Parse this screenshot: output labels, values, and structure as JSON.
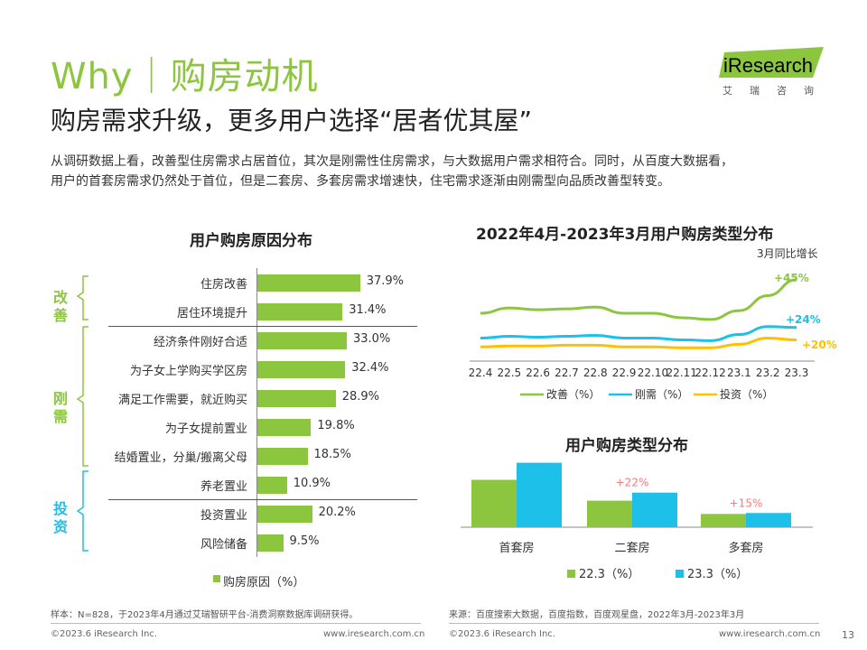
{
  "header": {
    "title": "Why｜购房动机",
    "subtitle": "购房需求升级，更多用户选择“居者优其屋”",
    "paragraph_line1": "从调研数据上看，改善型住房需求占居首位，其次是刚需性住房需求，与大数据用户需求相符合。同时，从百度大数据看，",
    "paragraph_line2": "用户的首套房需求仍然处于首位，但是二套房、多套房需求增速快，住宅需求逐渐由刚需型向品质改善型转变。"
  },
  "logo": {
    "text": "iResearch",
    "sub": "艾瑞咨询",
    "colors": {
      "green": "#8cc63f"
    }
  },
  "colors": {
    "green": "#8cc63f",
    "blue": "#1cc0e8",
    "yellow": "#ffc000",
    "pink": "#f47c7c"
  },
  "left_chart": {
    "title": "用户购房原因分布",
    "legend": "购房原因（%）",
    "groups": [
      {
        "label_top": "改",
        "label_bottom": "善",
        "color": "#8cc63f"
      },
      {
        "label_top": "刚",
        "label_bottom": "需",
        "color": "#8cc63f"
      },
      {
        "label_top": "投",
        "label_bottom": "资",
        "color": "#1cc0e8"
      }
    ]
  },
  "top_right_chart": {
    "title": "2022年4月-2023年3月用户购房类型分布",
    "note": "3月同比增长",
    "annotations": [
      "+45%",
      "+24%",
      "+20%"
    ]
  },
  "bottom_right_chart": {
    "title": "用户购房类型分布",
    "growth_labels": [
      "+22%",
      "+15%"
    ]
  },
  "chart_data": [
    {
      "type": "bar",
      "orientation": "horizontal",
      "title": "用户购房原因分布",
      "categories": [
        "住房改善",
        "居住环境提升",
        "经济条件刚好合适",
        "为子女上学购买学区房",
        "满足工作需要，就近购买",
        "为子女提前置业",
        "结婚置业，分巢/搬离父母",
        "养老置业",
        "投资置业",
        "风险储备"
      ],
      "series": [
        {
          "name": "购房原因（%）",
          "values": [
            37.9,
            31.4,
            33.0,
            32.4,
            28.9,
            19.8,
            18.5,
            10.9,
            20.2,
            9.5
          ],
          "labels": [
            "37.9%",
            "31.4%",
            "33.0%",
            "32.4%",
            "28.9%",
            "19.8%",
            "18.5%",
            "10.9%",
            "20.2%",
            "9.5%"
          ]
        }
      ],
      "xlim": [
        0,
        40
      ]
    },
    {
      "type": "line",
      "title": "2022年4月-2023年3月用户购房类型分布",
      "x": [
        "22.4",
        "22.5",
        "22.6",
        "22.7",
        "22.8",
        "22.9",
        "22.10",
        "22.11",
        "22.12",
        "23.1",
        "23.2",
        "23.3"
      ],
      "series": [
        {
          "name": "改善（%）",
          "color": "#8cc63f",
          "values": [
            52,
            58,
            56,
            57,
            59,
            52,
            52,
            47,
            45,
            55,
            72,
            90
          ]
        },
        {
          "name": "刚需（%）",
          "color": "#1cc0e8",
          "values": [
            24,
            26,
            25,
            26,
            27,
            24,
            24,
            22,
            21,
            28,
            37,
            36
          ]
        },
        {
          "name": "投资（%）",
          "color": "#ffc000",
          "values": [
            14,
            15,
            15,
            16,
            16,
            14,
            14,
            13,
            13,
            17,
            24,
            22
          ]
        }
      ],
      "ylim": [
        0,
        100
      ]
    },
    {
      "type": "bar",
      "title": "用户购房类型分布",
      "categories": [
        "首套房",
        "二套房",
        "多套房"
      ],
      "series": [
        {
          "name": "22.3（%）",
          "color": "#8cc63f",
          "values": [
            100,
            56,
            28
          ]
        },
        {
          "name": "23.3（%）",
          "color": "#1cc0e8",
          "values": [
            136,
            73,
            30
          ]
        }
      ],
      "ylim": [
        0,
        160
      ]
    }
  ],
  "footer": {
    "sample_note": "样本：N=828，于2023年4月通过艾瑞智研平台-消费洞察数据库调研获得。",
    "source_note": "来源：百度搜索大数据，百度指数，百度观星盘，2022年3月-2023年3月",
    "copyright_left": "©2023.6 iResearch Inc.",
    "url_left": "www.iresearch.com.cn",
    "copyright_right": "©2023.6 iResearch Inc.",
    "url_right": "www.iresearch.com.cn",
    "page_number": "13"
  }
}
